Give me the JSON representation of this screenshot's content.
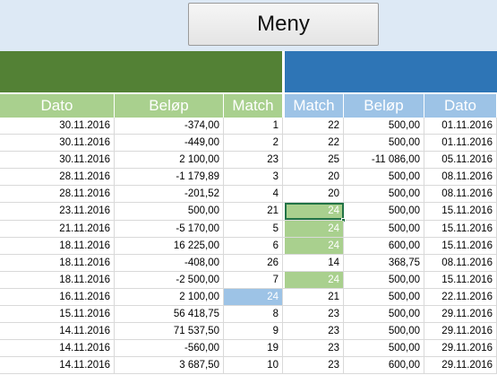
{
  "menu_button": {
    "label": "Meny"
  },
  "headers": {
    "left": [
      "Dato",
      "Beløp",
      "Match"
    ],
    "right": [
      "Match",
      "Beløp",
      "Dato"
    ]
  },
  "colors": {
    "green_band": "#538135",
    "blue_band": "#2e75b6",
    "green_light": "#a9d08e",
    "blue_light": "#9dc3e6"
  },
  "rows": [
    {
      "dato_l": "30.11.2016",
      "belop_l": "-374,00",
      "match_l": "1",
      "match_r": "22",
      "belop_r": "500,00",
      "dato_r": "01.11.2016"
    },
    {
      "dato_l": "30.11.2016",
      "belop_l": "-449,00",
      "match_l": "2",
      "match_r": "22",
      "belop_r": "500,00",
      "dato_r": "01.11.2016"
    },
    {
      "dato_l": "30.11.2016",
      "belop_l": "2 100,00",
      "match_l": "23",
      "match_r": "25",
      "belop_r": "-11 086,00",
      "dato_r": "05.11.2016"
    },
    {
      "dato_l": "28.11.2016",
      "belop_l": "-1 179,89",
      "match_l": "3",
      "match_r": "20",
      "belop_r": "500,00",
      "dato_r": "08.11.2016"
    },
    {
      "dato_l": "28.11.2016",
      "belop_l": "-201,52",
      "match_l": "4",
      "match_r": "20",
      "belop_r": "500,00",
      "dato_r": "08.11.2016"
    },
    {
      "dato_l": "23.11.2016",
      "belop_l": "500,00",
      "match_l": "21",
      "match_r": "24",
      "belop_r": "500,00",
      "dato_r": "15.11.2016",
      "hl_r": true,
      "selected_r": true
    },
    {
      "dato_l": "21.11.2016",
      "belop_l": "-5 170,00",
      "match_l": "5",
      "match_r": "24",
      "belop_r": "500,00",
      "dato_r": "15.11.2016",
      "hl_r": true
    },
    {
      "dato_l": "18.11.2016",
      "belop_l": "16 225,00",
      "match_l": "6",
      "match_r": "24",
      "belop_r": "600,00",
      "dato_r": "15.11.2016",
      "hl_r": true
    },
    {
      "dato_l": "18.11.2016",
      "belop_l": "-408,00",
      "match_l": "26",
      "match_r": "14",
      "belop_r": "368,75",
      "dato_r": "08.11.2016"
    },
    {
      "dato_l": "18.11.2016",
      "belop_l": "-2 500,00",
      "match_l": "7",
      "match_r": "24",
      "belop_r": "500,00",
      "dato_r": "15.11.2016",
      "hl_r": true
    },
    {
      "dato_l": "16.11.2016",
      "belop_l": "2 100,00",
      "match_l": "24",
      "match_r": "21",
      "belop_r": "500,00",
      "dato_r": "22.11.2016",
      "hl_l": true
    },
    {
      "dato_l": "15.11.2016",
      "belop_l": "56 418,75",
      "match_l": "8",
      "match_r": "23",
      "belop_r": "500,00",
      "dato_r": "29.11.2016"
    },
    {
      "dato_l": "14.11.2016",
      "belop_l": "71 537,50",
      "match_l": "9",
      "match_r": "23",
      "belop_r": "500,00",
      "dato_r": "29.11.2016"
    },
    {
      "dato_l": "14.11.2016",
      "belop_l": "-560,00",
      "match_l": "19",
      "match_r": "23",
      "belop_r": "500,00",
      "dato_r": "29.11.2016"
    },
    {
      "dato_l": "14.11.2016",
      "belop_l": "3 687,50",
      "match_l": "10",
      "match_r": "23",
      "belop_r": "600,00",
      "dato_r": "29.11.2016"
    }
  ]
}
